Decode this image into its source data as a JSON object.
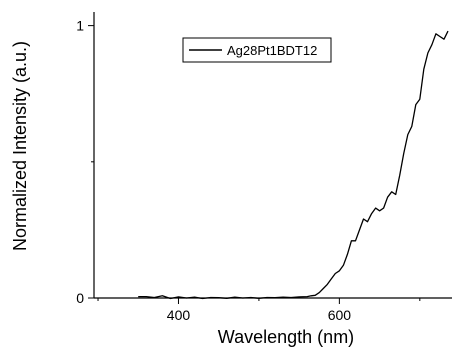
{
  "chart_data": {
    "type": "line",
    "title": "",
    "xlabel": "Wavelength (nm)",
    "ylabel": "Normalized Intensity (a.u.)",
    "xlim": [
      295,
      740
    ],
    "ylim": [
      0,
      1.05
    ],
    "x_ticks": [
      400,
      600
    ],
    "y_ticks": [
      0,
      1
    ],
    "grid": false,
    "legend_position": "top-center",
    "series": [
      {
        "name": "Ag28Pt1BDT12",
        "color": "#000000",
        "x": [
          350,
          360,
          370,
          380,
          390,
          400,
          410,
          420,
          430,
          440,
          450,
          460,
          470,
          480,
          490,
          500,
          510,
          520,
          530,
          540,
          550,
          560,
          565,
          570,
          575,
          580,
          585,
          590,
          595,
          600,
          605,
          610,
          615,
          620,
          625,
          630,
          635,
          640,
          645,
          650,
          655,
          660,
          665,
          670,
          675,
          680,
          685,
          690,
          695,
          700,
          705,
          710,
          715,
          720,
          725,
          730,
          735
        ],
        "y": [
          0.005,
          0.005,
          0.002,
          0.008,
          -0.002,
          0.004,
          0.0,
          0.003,
          -0.002,
          0.002,
          0.001,
          -0.001,
          0.003,
          0.0,
          0.002,
          -0.001,
          0.002,
          0.001,
          0.003,
          0.002,
          0.004,
          0.005,
          0.008,
          0.01,
          0.02,
          0.035,
          0.05,
          0.07,
          0.09,
          0.1,
          0.12,
          0.16,
          0.21,
          0.21,
          0.25,
          0.29,
          0.28,
          0.31,
          0.33,
          0.32,
          0.33,
          0.37,
          0.39,
          0.38,
          0.45,
          0.53,
          0.6,
          0.63,
          0.71,
          0.73,
          0.84,
          0.9,
          0.93,
          0.97,
          0.96,
          0.95,
          0.98
        ]
      }
    ]
  }
}
